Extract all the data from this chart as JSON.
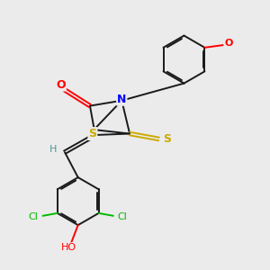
{
  "bg_color": "#ebebeb",
  "bond_color": "#1a1a1a",
  "bond_width": 1.4,
  "atom_colors": {
    "O": "#ff0000",
    "N": "#0000ff",
    "S": "#ccaa00",
    "Cl": "#00bb00",
    "H": "#4a9a9a",
    "C": "#1a1a1a"
  },
  "figsize": [
    3.0,
    3.0
  ],
  "dpi": 100
}
